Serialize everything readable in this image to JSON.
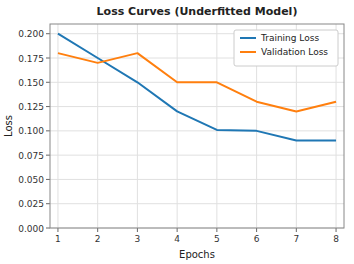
{
  "chart_data": {
    "type": "line",
    "title": "Loss Curves (Underfitted Model)",
    "xlabel": "Epochs",
    "ylabel": "Loss",
    "x": [
      1,
      2,
      3,
      4,
      5,
      6,
      7,
      8
    ],
    "series": [
      {
        "name": "Training Loss",
        "color": "#1f77b4",
        "values": [
          0.2,
          0.175,
          0.15,
          0.12,
          0.101,
          0.1,
          0.09,
          0.09
        ]
      },
      {
        "name": "Validation Loss",
        "color": "#ff7f0e",
        "values": [
          0.18,
          0.17,
          0.18,
          0.15,
          0.15,
          0.13,
          0.12,
          0.13
        ]
      }
    ],
    "xlim": [
      0.8,
      8.2
    ],
    "xticks": [
      1,
      2,
      3,
      4,
      5,
      6,
      7,
      8
    ],
    "ylim": [
      0.0,
      0.21
    ],
    "yticks": [
      {
        "value": 0,
        "label": "0.000"
      },
      0.025,
      {
        "value": 0.05,
        "label": "0.050"
      },
      0.075,
      {
        "value": 0.1,
        "label": "0.100"
      },
      0.125,
      {
        "value": 0.15,
        "label": "0.150"
      },
      0.175,
      {
        "value": 0.2,
        "label": "0.200"
      }
    ],
    "grid": true,
    "legend": "upper right"
  }
}
